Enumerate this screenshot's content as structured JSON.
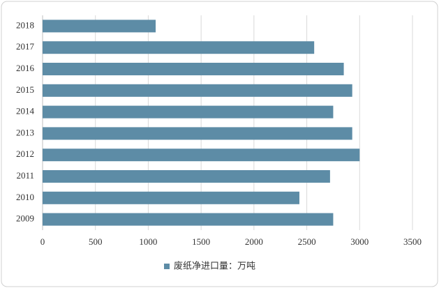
{
  "chart_data": {
    "type": "bar",
    "orientation": "horizontal",
    "categories": [
      "2018",
      "2017",
      "2016",
      "2015",
      "2014",
      "2013",
      "2012",
      "2011",
      "2010",
      "2009"
    ],
    "series": [
      {
        "name": "废纸净进口量：万吨",
        "color": "#5d8ca6",
        "values": [
          1070,
          2570,
          2850,
          2930,
          2750,
          2930,
          3000,
          2720,
          2430,
          2750
        ]
      }
    ],
    "xlim": [
      0,
      3500
    ],
    "xticks": [
      0,
      500,
      1000,
      1500,
      2000,
      2500,
      3000,
      3500
    ],
    "grid": true,
    "legend": "bottom"
  }
}
